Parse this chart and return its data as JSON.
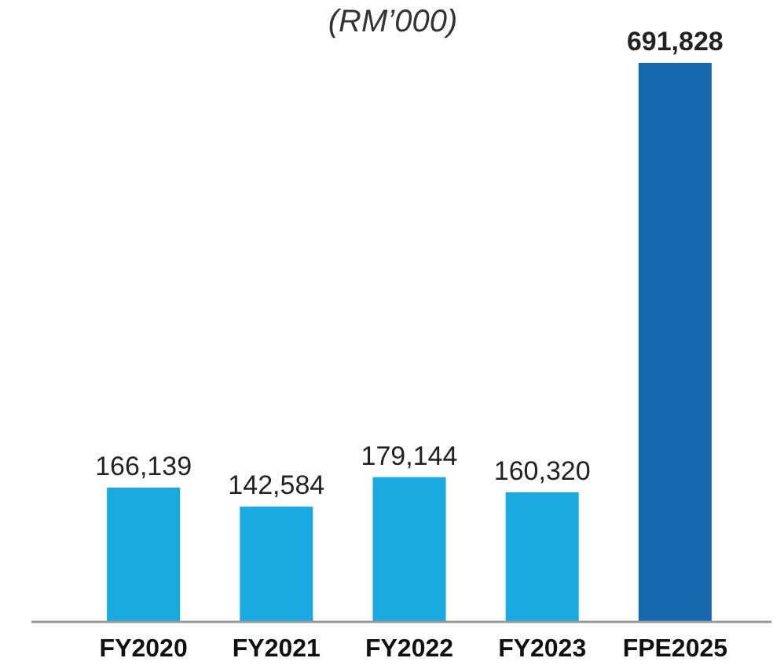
{
  "chart_data": {
    "type": "bar",
    "title": "(RM’000)",
    "categories": [
      "FY2020",
      "FY2021",
      "FY2022",
      "FY2023",
      "FPE2025"
    ],
    "values": [
      166139,
      142584,
      179144,
      160320,
      691828
    ],
    "colors": [
      "#1aa9e1",
      "#1aa9e1",
      "#1aa9e1",
      "#1aa9e1",
      "#1768ad"
    ],
    "value_labels": [
      "166,139",
      "142,584",
      "179,144",
      "160,320",
      "691,828"
    ]
  }
}
